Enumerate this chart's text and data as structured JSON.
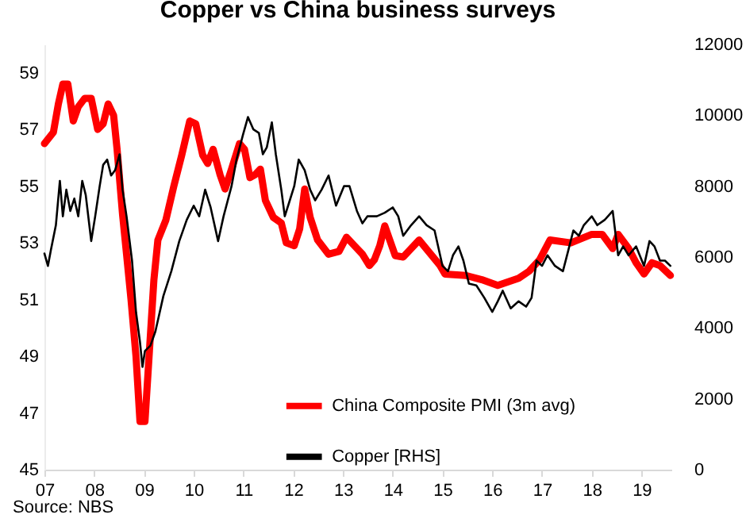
{
  "chart_data": {
    "type": "line",
    "title": "Copper vs China business surveys",
    "annotations": [
      "Source: NBS"
    ],
    "xlim": [
      2007,
      2019.6
    ],
    "xticks": [
      {
        "value": 2007,
        "label": "07"
      },
      {
        "value": 2008,
        "label": "08"
      },
      {
        "value": 2009,
        "label": "09"
      },
      {
        "value": 2010,
        "label": "10"
      },
      {
        "value": 2011,
        "label": "11"
      },
      {
        "value": 2012,
        "label": "12"
      },
      {
        "value": 2013,
        "label": "13"
      },
      {
        "value": 2014,
        "label": "14"
      },
      {
        "value": 2015,
        "label": "15"
      },
      {
        "value": 2016,
        "label": "16"
      },
      {
        "value": 2017,
        "label": "17"
      },
      {
        "value": 2018,
        "label": "18"
      },
      {
        "value": 2019,
        "label": "19"
      }
    ],
    "ylim": [
      45,
      60
    ],
    "yticks": [
      45,
      47,
      49,
      51,
      53,
      55,
      57,
      59
    ],
    "y2lim": [
      0,
      12000
    ],
    "y2ticks": [
      0,
      2000,
      4000,
      6000,
      8000,
      10000,
      12000
    ],
    "grid": false,
    "legend": "bottom",
    "series": [
      {
        "name": "China Composite PMI (3m avg)",
        "color": "#ff0000",
        "axis": "y",
        "x": [
          2007.0,
          2007.18,
          2007.28,
          2007.37,
          2007.47,
          2007.58,
          2007.68,
          2007.81,
          2007.94,
          2008.07,
          2008.18,
          2008.28,
          2008.39,
          2008.46,
          2008.57,
          2008.65,
          2008.74,
          2008.84,
          2008.92,
          2009.02,
          2009.11,
          2009.2,
          2009.28,
          2009.44,
          2009.6,
          2009.76,
          2009.92,
          2010.04,
          2010.18,
          2010.28,
          2010.39,
          2010.53,
          2010.63,
          2010.76,
          2010.92,
          2011.02,
          2011.13,
          2011.23,
          2011.34,
          2011.44,
          2011.6,
          2011.76,
          2011.86,
          2012.02,
          2012.13,
          2012.23,
          2012.34,
          2012.49,
          2012.71,
          2012.92,
          2013.07,
          2013.23,
          2013.39,
          2013.53,
          2013.63,
          2013.74,
          2013.84,
          2014.05,
          2014.21,
          2014.53,
          2014.95,
          2015.05,
          2015.47,
          2015.79,
          2016.11,
          2016.53,
          2016.74,
          2016.95,
          2017.16,
          2017.58,
          2018.0,
          2018.21,
          2018.42,
          2018.53,
          2018.74,
          2018.89,
          2019.05,
          2019.21,
          2019.37,
          2019.58
        ],
        "values": [
          56.5,
          56.9,
          57.9,
          58.6,
          58.6,
          57.3,
          57.8,
          58.1,
          58.1,
          57.0,
          57.2,
          57.9,
          57.5,
          56.3,
          54.0,
          52.6,
          51.0,
          49.0,
          46.7,
          46.7,
          49.2,
          51.7,
          53.1,
          53.8,
          55.0,
          56.1,
          57.3,
          57.2,
          56.1,
          55.8,
          56.3,
          55.4,
          54.9,
          55.6,
          56.5,
          56.3,
          55.3,
          55.4,
          55.6,
          54.5,
          53.9,
          53.7,
          53.0,
          52.9,
          53.5,
          54.9,
          53.9,
          53.1,
          52.6,
          52.7,
          53.2,
          52.9,
          52.6,
          52.2,
          52.4,
          52.9,
          53.6,
          52.55,
          52.5,
          53.1,
          52.2,
          51.9,
          51.85,
          51.7,
          51.5,
          51.75,
          52.0,
          52.4,
          53.1,
          53.0,
          53.3,
          53.3,
          52.8,
          53.3,
          52.8,
          52.3,
          51.9,
          52.3,
          52.2,
          51.85
        ]
      },
      {
        "name": "Copper [RHS]",
        "color": "#000000",
        "axis": "y2",
        "x": [
          2007.0,
          2007.07,
          2007.13,
          2007.23,
          2007.31,
          2007.37,
          2007.44,
          2007.52,
          2007.6,
          2007.68,
          2007.76,
          2007.83,
          2007.94,
          2008.02,
          2008.11,
          2008.18,
          2008.26,
          2008.34,
          2008.42,
          2008.51,
          2008.57,
          2008.65,
          2008.76,
          2008.84,
          2008.92,
          2008.97,
          2009.02,
          2009.13,
          2009.23,
          2009.39,
          2009.55,
          2009.71,
          2009.86,
          2010.0,
          2010.11,
          2010.23,
          2010.34,
          2010.49,
          2010.6,
          2010.76,
          2010.86,
          2010.99,
          2011.09,
          2011.2,
          2011.31,
          2011.39,
          2011.47,
          2011.57,
          2011.65,
          2011.76,
          2011.83,
          2011.92,
          2012.02,
          2012.11,
          2012.23,
          2012.34,
          2012.44,
          2012.57,
          2012.71,
          2012.86,
          2013.02,
          2013.13,
          2013.28,
          2013.39,
          2013.49,
          2013.68,
          2013.84,
          2014.0,
          2014.11,
          2014.21,
          2014.37,
          2014.53,
          2014.68,
          2014.84,
          2015.0,
          2015.11,
          2015.21,
          2015.32,
          2015.42,
          2015.53,
          2015.68,
          2015.84,
          2016.0,
          2016.11,
          2016.21,
          2016.37,
          2016.53,
          2016.68,
          2016.79,
          2016.89,
          2017.0,
          2017.11,
          2017.26,
          2017.42,
          2017.53,
          2017.63,
          2017.74,
          2017.84,
          2018.0,
          2018.11,
          2018.26,
          2018.42,
          2018.53,
          2018.63,
          2018.74,
          2018.89,
          2019.05,
          2019.16,
          2019.26,
          2019.37,
          2019.47,
          2019.58
        ],
        "values": [
          6100,
          5750,
          6200,
          6900,
          8150,
          7150,
          7900,
          7300,
          7650,
          7150,
          8150,
          7750,
          6450,
          7150,
          8000,
          8600,
          8750,
          8300,
          8450,
          8900,
          7900,
          7150,
          5900,
          4450,
          3600,
          2900,
          3350,
          3500,
          3900,
          4900,
          5600,
          6450,
          7050,
          7450,
          7150,
          7900,
          7400,
          6450,
          7150,
          8000,
          8750,
          9450,
          9950,
          9600,
          9500,
          8900,
          9100,
          9800,
          8900,
          7900,
          7150,
          7550,
          8000,
          8750,
          8450,
          7900,
          7600,
          7900,
          8300,
          7450,
          8000,
          8000,
          7300,
          6950,
          7150,
          7150,
          7250,
          7400,
          7150,
          6600,
          6900,
          7150,
          6900,
          6750,
          5750,
          5600,
          6050,
          6300,
          5900,
          5250,
          5200,
          4850,
          4450,
          4750,
          5050,
          4550,
          4750,
          4600,
          4850,
          5900,
          5750,
          6050,
          5750,
          5600,
          6200,
          6750,
          6600,
          6900,
          7150,
          6900,
          7050,
          7300,
          6050,
          6300,
          6050,
          6300,
          5750,
          6450,
          6300,
          5900,
          5900,
          5750
        ]
      }
    ]
  }
}
